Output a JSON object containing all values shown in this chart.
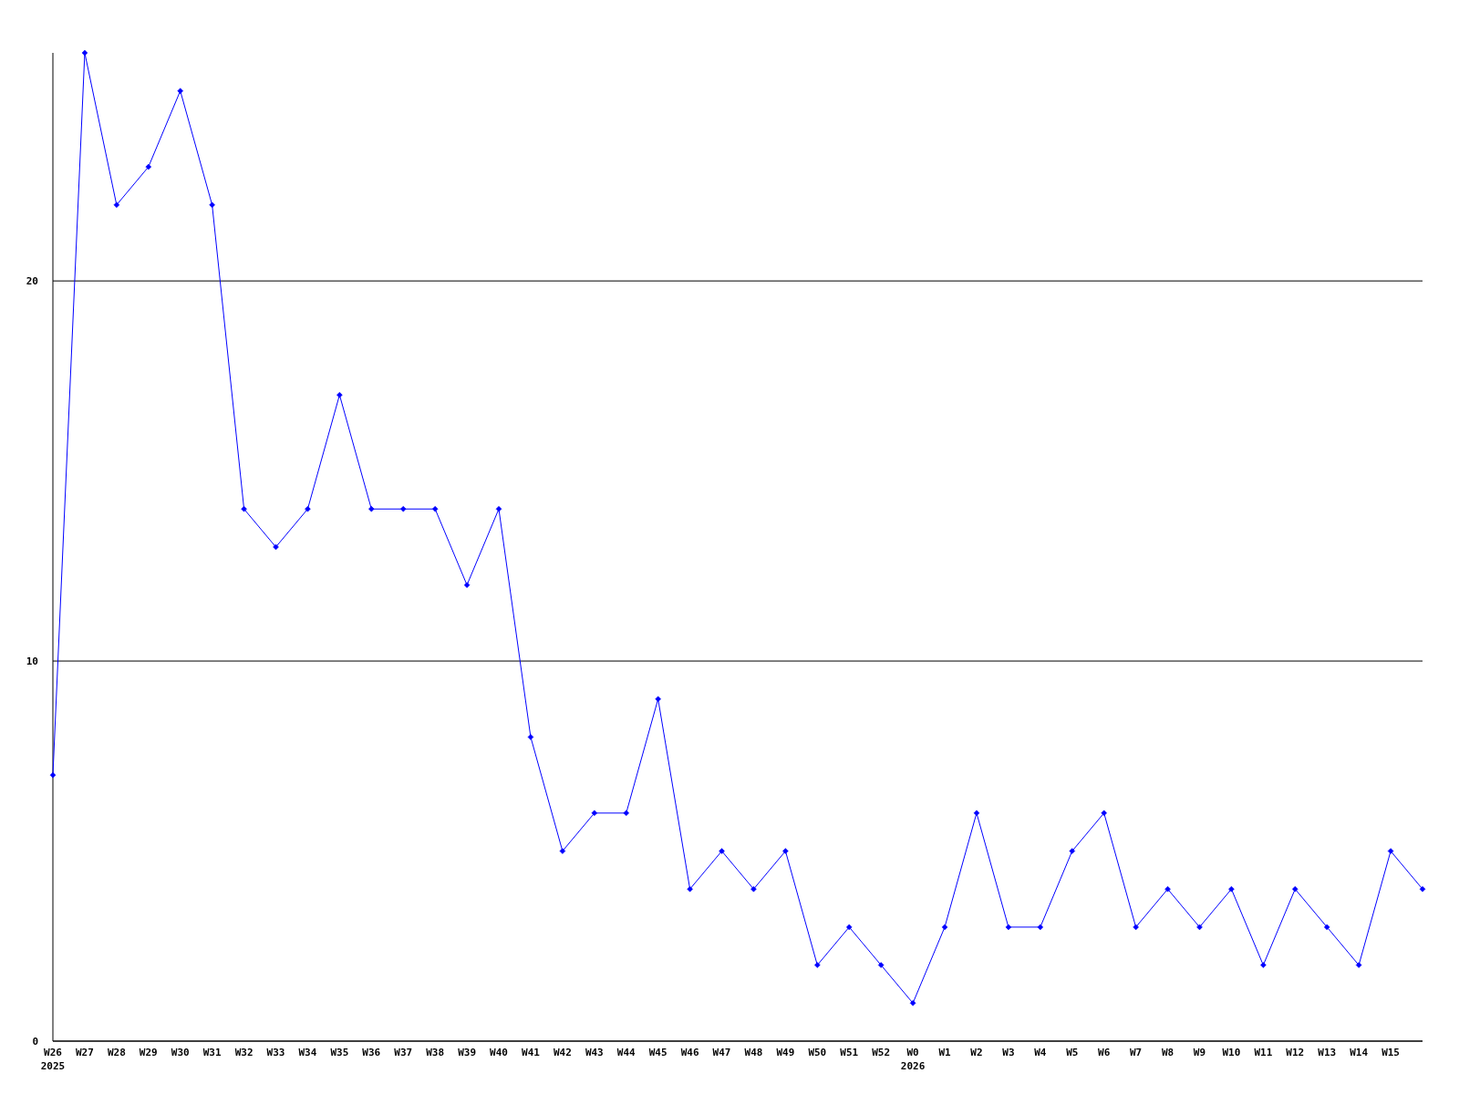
{
  "chart_data": {
    "type": "line",
    "categories": [
      "W26\n2025",
      "W27",
      "W28",
      "W29",
      "W30",
      "W31",
      "W32",
      "W33",
      "W34",
      "W35",
      "W36",
      "W37",
      "W38",
      "W39",
      "W40",
      "W41",
      "W42",
      "W43",
      "W44",
      "W45",
      "W46",
      "W47",
      "W48",
      "W49",
      "W50",
      "W51",
      "W52",
      "W0\n2026",
      "W1",
      "W2",
      "W3",
      "W4",
      "W5",
      "W6",
      "W7",
      "W8",
      "W9",
      "W10",
      "W11",
      "W12",
      "W13",
      "W14",
      "W15",
      null
    ],
    "series": [
      {
        "color": "#0000ff",
        "values": [
          7,
          26,
          22,
          23,
          25,
          22,
          14,
          13,
          14,
          17,
          14,
          14,
          14,
          12,
          14,
          8,
          5,
          6,
          6,
          9,
          4,
          5,
          4,
          5,
          2,
          3,
          2,
          1,
          3,
          6,
          3,
          3,
          5,
          6,
          3,
          4,
          3,
          4,
          2,
          4,
          3,
          2,
          5,
          4
        ]
      }
    ],
    "ylim": [
      0,
      26
    ],
    "yticks": [
      0,
      10,
      20
    ],
    "grid": "y",
    "marker": "diamond",
    "line_style": "solid"
  }
}
